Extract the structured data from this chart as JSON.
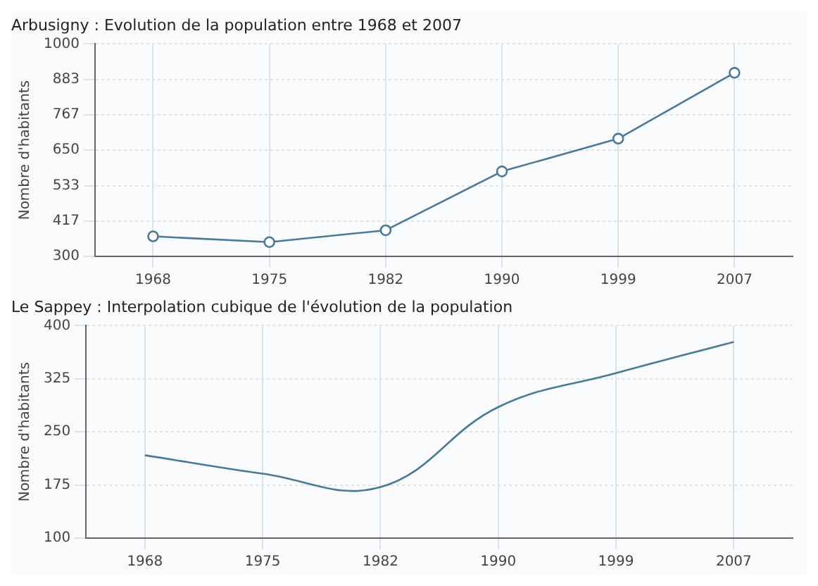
{
  "chart_data": [
    {
      "type": "line",
      "title": "Arbusigny : Evolution de la population entre 1968 et 2007",
      "ylabel": "Nombre d'habitants",
      "categories": [
        "1968",
        "1975",
        "1982",
        "1990",
        "1999",
        "2007"
      ],
      "series": [
        {
          "color": "#4a7a96",
          "values": [
            366,
            347,
            386,
            580,
            688,
            905
          ]
        }
      ],
      "ylim": [
        300,
        1000
      ],
      "yticks": [
        300,
        417,
        533,
        650,
        767,
        883,
        1000
      ],
      "grid": true,
      "marker": "circle",
      "line_style": "solid"
    },
    {
      "type": "line",
      "title": "Le Sappey : Interpolation cubique de l'évolution de la population",
      "ylabel": "Nombre d'habitants",
      "categories": [
        "1968",
        "1975",
        "1982",
        "1990",
        "1999",
        "2007"
      ],
      "series": [
        {
          "color": "#4a7a96",
          "values": [
            217,
            191,
            172,
            285,
            333,
            377
          ]
        }
      ],
      "ylim": [
        100,
        400
      ],
      "yticks": [
        100,
        175,
        250,
        325,
        400
      ],
      "grid": true,
      "marker": "none",
      "line_style": "solid"
    }
  ]
}
